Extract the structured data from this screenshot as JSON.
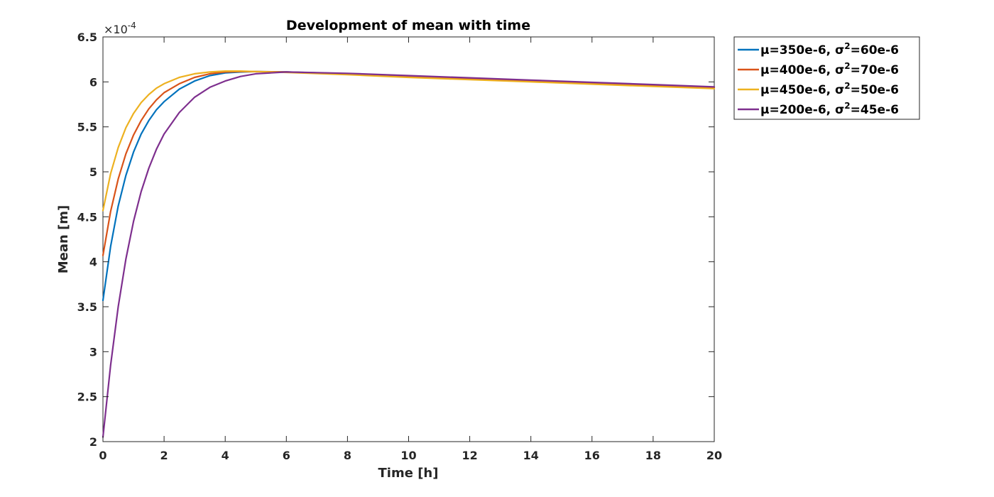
{
  "chart_data": {
    "type": "line",
    "title": "Development of mean with time",
    "xlabel": "Time [h]",
    "ylabel": "Mean [m]",
    "y_exponent_label": "×10",
    "y_exponent_power": "-4",
    "xlim": [
      0,
      20
    ],
    "ylim": [
      2,
      6.5
    ],
    "xticks": [
      0,
      2,
      4,
      6,
      8,
      10,
      12,
      14,
      16,
      18,
      20
    ],
    "yticks": [
      2,
      2.5,
      3,
      3.5,
      4,
      4.5,
      5,
      5.5,
      6,
      6.5
    ],
    "x_tick_labels": [
      "0",
      "2",
      "4",
      "6",
      "8",
      "10",
      "12",
      "14",
      "16",
      "18",
      "20"
    ],
    "y_tick_labels": [
      "2",
      "2.5",
      "3",
      "3.5",
      "4",
      "4.5",
      "5",
      "5.5",
      "6",
      "6.5"
    ],
    "grid": false,
    "legend_position": "outside-top-right",
    "x": [
      0,
      0.25,
      0.5,
      0.75,
      1,
      1.25,
      1.5,
      1.75,
      2,
      2.5,
      3,
      3.5,
      4,
      4.5,
      5,
      6,
      8,
      10,
      12,
      14,
      16,
      18,
      20
    ],
    "series": [
      {
        "name": "μ=350e-6, σ",
        "name_sup": "2",
        "name_tail": "=60e-6",
        "color": "#0072BD",
        "values": [
          3.57,
          4.17,
          4.62,
          4.96,
          5.22,
          5.42,
          5.57,
          5.69,
          5.78,
          5.92,
          6.01,
          6.07,
          6.1,
          6.11,
          6.115,
          6.11,
          6.09,
          6.06,
          6.04,
          6.015,
          5.99,
          5.965,
          5.94
        ]
      },
      {
        "name": "μ=400e-6, σ",
        "name_sup": "2",
        "name_tail": "=70e-6",
        "color": "#D95319",
        "values": [
          4.07,
          4.56,
          4.92,
          5.2,
          5.41,
          5.57,
          5.7,
          5.8,
          5.88,
          5.98,
          6.05,
          6.09,
          6.11,
          6.115,
          6.115,
          6.11,
          6.085,
          6.055,
          6.03,
          6.005,
          5.98,
          5.955,
          5.93
        ]
      },
      {
        "name": "μ=450e-6, σ",
        "name_sup": "2",
        "name_tail": "=50e-6",
        "color": "#EDB120",
        "values": [
          4.57,
          4.98,
          5.27,
          5.49,
          5.65,
          5.77,
          5.86,
          5.93,
          5.98,
          6.05,
          6.09,
          6.11,
          6.12,
          6.12,
          6.115,
          6.105,
          6.08,
          6.05,
          6.025,
          6.0,
          5.975,
          5.95,
          5.925
        ]
      },
      {
        "name": "μ=200e-6, σ",
        "name_sup": "2",
        "name_tail": "=45e-6",
        "color": "#7E2F8E",
        "values": [
          2.05,
          2.85,
          3.5,
          4.03,
          4.45,
          4.78,
          5.04,
          5.25,
          5.42,
          5.66,
          5.83,
          5.94,
          6.01,
          6.06,
          6.09,
          6.11,
          6.095,
          6.07,
          6.045,
          6.02,
          5.995,
          5.97,
          5.945
        ]
      }
    ]
  }
}
